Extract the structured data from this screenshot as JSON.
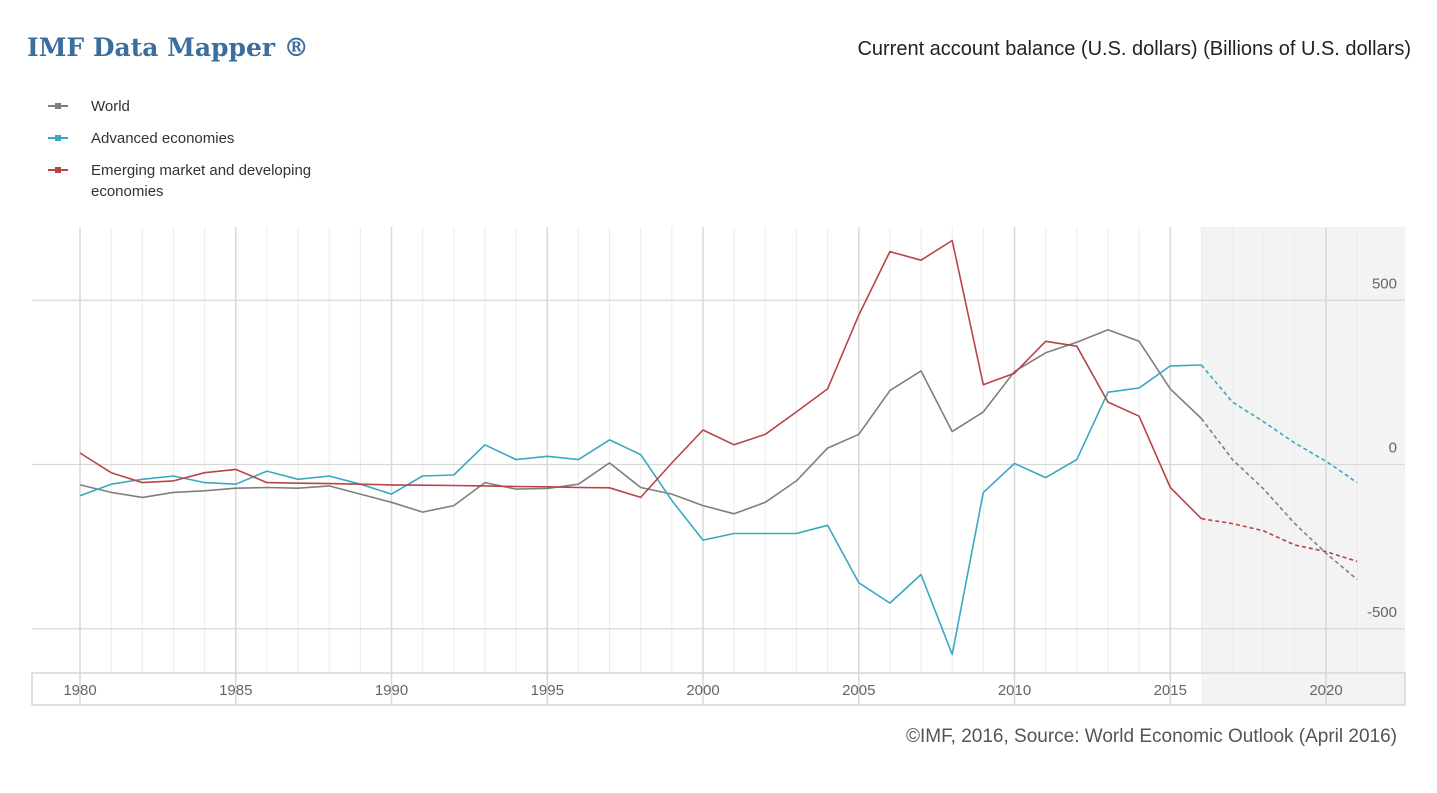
{
  "header": {
    "brand": "IMF Data Mapper ®",
    "title": "Current account balance (U.S. dollars) (Billions of U.S. dollars)"
  },
  "footer": {
    "source": "©IMF, 2016, Source: World Economic Outlook (April 2016)"
  },
  "chart_data": {
    "type": "line",
    "title": "Current account balance (U.S. dollars) (Billions of U.S. dollars)",
    "xlabel": "",
    "ylabel": "",
    "xlim": [
      1980,
      2021
    ],
    "ylim": [
      -630,
      720
    ],
    "x_ticks": [
      1980,
      1985,
      1990,
      1995,
      2000,
      2005,
      2010,
      2015,
      2020
    ],
    "y_ticks": [
      500,
      0,
      -500
    ],
    "projection_start": 2016,
    "grid": true,
    "legend_position": "top-left",
    "x": [
      1980,
      1981,
      1982,
      1983,
      1984,
      1985,
      1986,
      1987,
      1988,
      1989,
      1990,
      1991,
      1992,
      1993,
      1994,
      1995,
      1996,
      1997,
      1998,
      1999,
      2000,
      2001,
      2002,
      2003,
      2004,
      2005,
      2006,
      2007,
      2008,
      2009,
      2010,
      2011,
      2012,
      2013,
      2014,
      2015,
      2016,
      2017,
      2018,
      2019,
      2020,
      2021
    ],
    "series": [
      {
        "name": "World",
        "color": "#7f7f7f",
        "values": [
          -62,
          -85,
          -100,
          -85,
          -80,
          -72,
          -70,
          -72,
          -65,
          -90,
          -115,
          -145,
          -125,
          -55,
          -75,
          -73,
          -60,
          5,
          -70,
          -90,
          -125,
          -150,
          -115,
          -50,
          50,
          92,
          225,
          285,
          100,
          160,
          283,
          340,
          372,
          410,
          375,
          230,
          140,
          15,
          -75,
          -180,
          -270,
          -350
        ]
      },
      {
        "name": "Advanced economies",
        "color": "#38a9c0",
        "values": [
          -95,
          -60,
          -45,
          -35,
          -55,
          -60,
          -20,
          -45,
          -35,
          -60,
          -90,
          -35,
          -32,
          60,
          15,
          25,
          15,
          75,
          30,
          -110,
          -230,
          -210,
          -210,
          -210,
          -185,
          -360,
          -422,
          -335,
          -578,
          -85,
          3,
          -40,
          15,
          220,
          233,
          300,
          303,
          190,
          130,
          65,
          10,
          -55
        ]
      },
      {
        "name": "Emerging market and developing economies",
        "color": "#b84448",
        "values": [
          35,
          -25,
          -55,
          -50,
          -25,
          -15,
          -55,
          -57,
          -58,
          -60,
          -62,
          -63,
          -64,
          -65,
          -67,
          -68,
          -70,
          -71,
          -100,
          5,
          105,
          60,
          92,
          160,
          230,
          455,
          648,
          622,
          682,
          243,
          278,
          375,
          360,
          190,
          147,
          -70,
          -165,
          -180,
          -202,
          -245,
          -265,
          -295
        ]
      }
    ]
  }
}
